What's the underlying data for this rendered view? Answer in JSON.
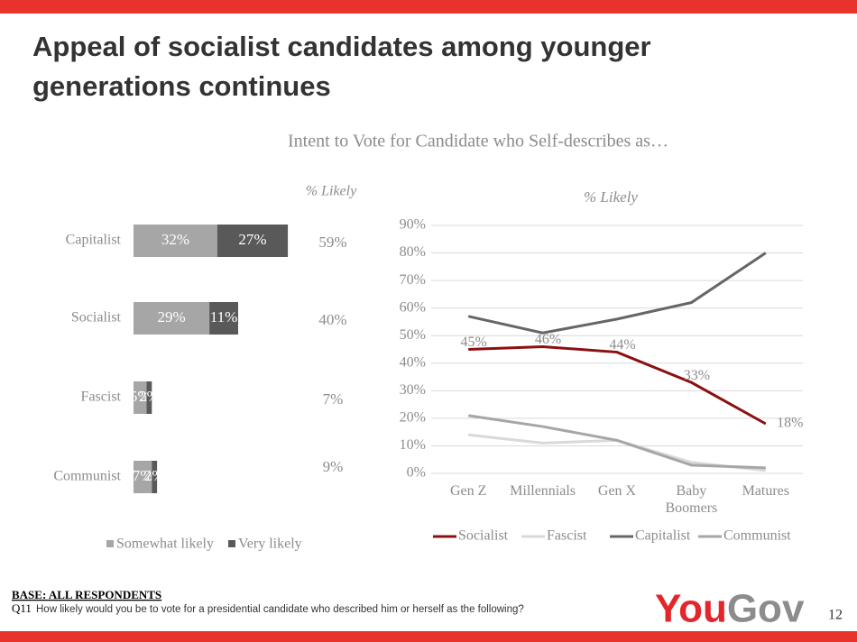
{
  "header": {
    "title": "Appeal of socialist candidates among younger generations continues"
  },
  "subtitle": "Intent to Vote for Candidate who Self-describes as…",
  "chart_data": [
    {
      "type": "stacked_bar_h",
      "categories": [
        "Capitalist",
        "Socialist",
        "Fascist",
        "Communist"
      ],
      "series": [
        {
          "name": "Somewhat likely",
          "color": "#a6a6a6",
          "values": [
            32,
            29,
            5,
            7
          ],
          "value_labels": [
            "32%",
            "29%",
            "5%",
            "7%"
          ]
        },
        {
          "name": "Very likely",
          "color": "#595959",
          "values": [
            27,
            11,
            2,
            2
          ],
          "value_labels": [
            "27%",
            "11%",
            "2%",
            "2%"
          ]
        }
      ],
      "totals_title": "% Likely",
      "totals": [
        59,
        40,
        7,
        9
      ],
      "total_labels": [
        "59%",
        "40%",
        "7%",
        "9%"
      ],
      "legend": "bottom"
    },
    {
      "type": "line",
      "title": "% Likely",
      "categories": [
        "Gen Z",
        "Millennials",
        "Gen X",
        "Baby Boomers",
        "Matures"
      ],
      "series": [
        {
          "name": "Socialist",
          "color": "#8b1010",
          "values": [
            45,
            46,
            44,
            33,
            18
          ],
          "value_labels": [
            "45%",
            "46%",
            "44%",
            "33%",
            "18%"
          ]
        },
        {
          "name": "Fascist",
          "color": "#d9d9d9",
          "values": [
            14,
            11,
            12,
            4,
            1
          ]
        },
        {
          "name": "Capitalist",
          "color": "#666666",
          "values": [
            57,
            51,
            56,
            62,
            80
          ]
        },
        {
          "name": "Communist",
          "color": "#a6a6a6",
          "values": [
            21,
            17,
            12,
            3,
            2
          ]
        }
      ],
      "ylim": [
        0,
        90
      ],
      "yticks": [
        {
          "value": 0,
          "label": "0%"
        },
        {
          "value": 10,
          "label": "10%"
        },
        {
          "value": 20,
          "label": "20%"
        },
        {
          "value": 30,
          "label": "30%"
        },
        {
          "value": 40,
          "label": "40%"
        },
        {
          "value": 50,
          "label": "50%"
        },
        {
          "value": 60,
          "label": "60%"
        },
        {
          "value": 70,
          "label": "70%"
        },
        {
          "value": 80,
          "label": "80%"
        },
        {
          "value": 90,
          "label": "90%"
        }
      ],
      "grid": true,
      "legend": "bottom"
    }
  ],
  "footer": {
    "base": "BASE: ALL RESPONDENTS",
    "question_number": "Q11",
    "question": "How likely would you be to vote for a presidential candidate who described him or herself as the following?",
    "logo": "YouGov",
    "page_number": "12"
  }
}
